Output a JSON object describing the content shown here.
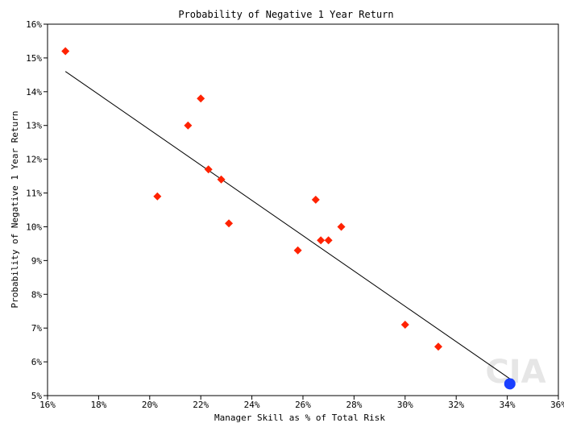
{
  "chart_data": {
    "type": "scatter",
    "title": "Probability of Negative 1 Year Return",
    "xlabel": "Manager Skill as % of Total Risk",
    "ylabel": "Probability of Negative 1 Year Return",
    "xlim": [
      16,
      36
    ],
    "ylim": [
      5,
      16
    ],
    "x_ticks": [
      "16%",
      "18%",
      "20%",
      "22%",
      "24%",
      "26%",
      "28%",
      "30%",
      "32%",
      "34%",
      "36%"
    ],
    "y_ticks": [
      "5%",
      "6%",
      "7%",
      "8%",
      "9%",
      "10%",
      "11%",
      "12%",
      "13%",
      "14%",
      "15%",
      "16%"
    ],
    "grid": false,
    "series": [
      {
        "marker": "diamond",
        "color": "#ff2200",
        "points": [
          {
            "x": 16.7,
            "y": 15.2
          },
          {
            "x": 20.3,
            "y": 10.9
          },
          {
            "x": 21.5,
            "y": 13.0
          },
          {
            "x": 22.0,
            "y": 13.8
          },
          {
            "x": 22.3,
            "y": 11.7
          },
          {
            "x": 22.8,
            "y": 11.4
          },
          {
            "x": 23.1,
            "y": 10.1
          },
          {
            "x": 25.8,
            "y": 9.3
          },
          {
            "x": 26.5,
            "y": 10.8
          },
          {
            "x": 26.7,
            "y": 9.6
          },
          {
            "x": 27.0,
            "y": 9.6
          },
          {
            "x": 27.5,
            "y": 10.0
          },
          {
            "x": 30.0,
            "y": 7.1
          },
          {
            "x": 31.3,
            "y": 6.45
          }
        ]
      },
      {
        "marker": "circle",
        "color": "#1a3fff",
        "points": [
          {
            "x": 34.1,
            "y": 5.35
          }
        ]
      }
    ],
    "trend_line": {
      "color": "#000000",
      "from": {
        "x": 16.7,
        "y": 14.6
      },
      "to": {
        "x": 34.1,
        "y": 5.5
      }
    },
    "watermark": "CIA"
  }
}
